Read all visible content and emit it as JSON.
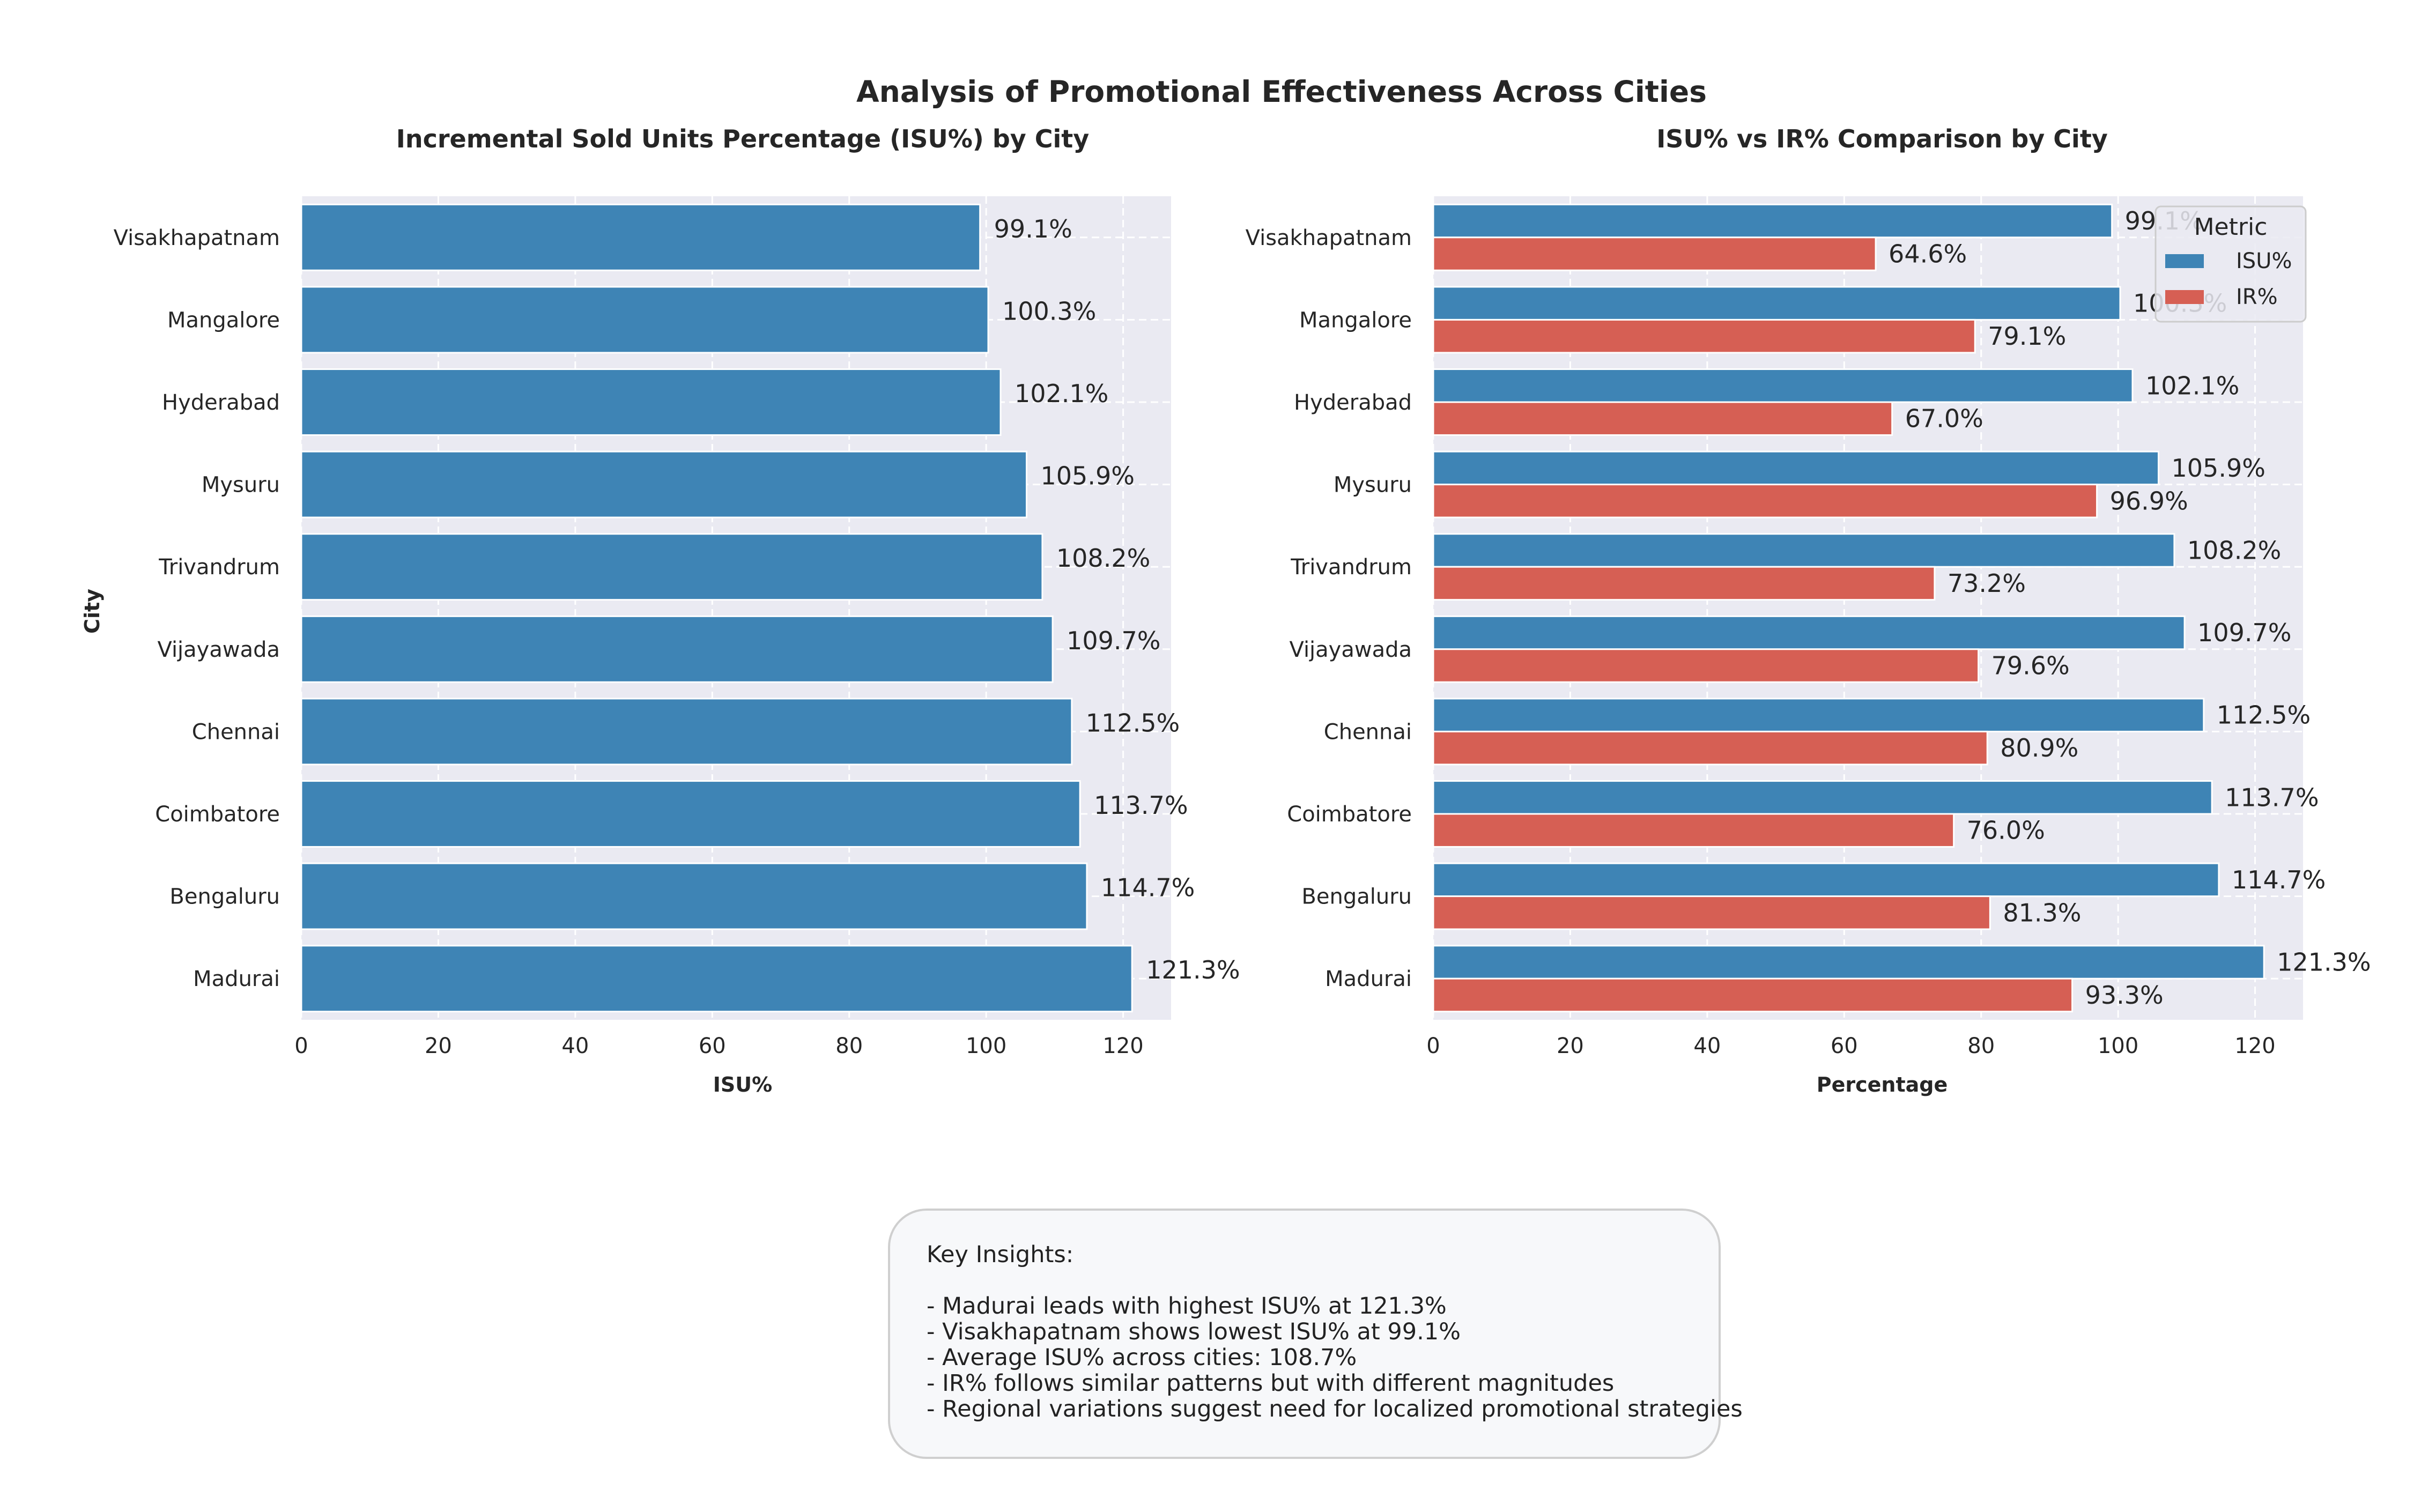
{
  "figure": {
    "title": "Analysis of Promotional Effectiveness Across Cities"
  },
  "chart_data": [
    {
      "type": "bar",
      "orientation": "horizontal",
      "title": "Incremental Sold Units Percentage (ISU%) by City",
      "xlabel": "ISU%",
      "ylabel": "City",
      "xlim": [
        0,
        127
      ],
      "xticks": [
        0,
        20,
        40,
        60,
        80,
        100,
        120
      ],
      "grid": true,
      "categories": [
        "Visakhapatnam",
        "Mangalore",
        "Hyderabad",
        "Mysuru",
        "Trivandrum",
        "Vijayawada",
        "Chennai",
        "Coimbatore",
        "Bengaluru",
        "Madurai"
      ],
      "series": [
        {
          "values": [
            99.1,
            100.3,
            102.1,
            105.9,
            108.2,
            109.7,
            112.5,
            113.7,
            114.7,
            121.3
          ],
          "color": "#3e84b5"
        }
      ],
      "data_labels": [
        "99.1%",
        "100.3%",
        "102.1%",
        "105.9%",
        "108.2%",
        "109.7%",
        "112.5%",
        "113.7%",
        "114.7%",
        "121.3%"
      ]
    },
    {
      "type": "bar",
      "orientation": "horizontal",
      "title": "ISU% vs IR% Comparison by City",
      "xlabel": "Percentage",
      "ylabel": "",
      "xlim": [
        0,
        127
      ],
      "xticks": [
        0,
        20,
        40,
        60,
        80,
        100,
        120
      ],
      "grid": true,
      "legend": {
        "title": "Metric",
        "position": "top-right"
      },
      "categories": [
        "Visakhapatnam",
        "Mangalore",
        "Hyderabad",
        "Mysuru",
        "Trivandrum",
        "Vijayawada",
        "Chennai",
        "Coimbatore",
        "Bengaluru",
        "Madurai"
      ],
      "series": [
        {
          "name": "ISU%",
          "values": [
            99.1,
            100.3,
            102.1,
            105.9,
            108.2,
            109.7,
            112.5,
            113.7,
            114.7,
            121.3
          ],
          "color": "#3e84b5",
          "data_labels": [
            "99.1%",
            "100.3%",
            "102.1%",
            "105.9%",
            "108.2%",
            "109.7%",
            "112.5%",
            "113.7%",
            "114.7%",
            "121.3%"
          ]
        },
        {
          "name": "IR%",
          "values": [
            64.6,
            79.1,
            67.0,
            96.9,
            73.2,
            79.6,
            80.9,
            76.0,
            81.3,
            93.3
          ],
          "color": "#d65f54",
          "data_labels": [
            "64.6%",
            "79.1%",
            "67.0%",
            "96.9%",
            "73.2%",
            "79.6%",
            "80.9%",
            "76.0%",
            "81.3%",
            "93.3%"
          ]
        }
      ]
    }
  ],
  "insights": {
    "heading": "Key Insights:",
    "lines": [
      "- Madurai leads with highest ISU% at 121.3%",
      "- Visakhapatnam shows lowest ISU% at 99.1%",
      "- Average ISU% across cities: 108.7%",
      "- IR% follows similar patterns but with different magnitudes",
      "- Regional variations suggest need for localized promotional strategies"
    ]
  }
}
